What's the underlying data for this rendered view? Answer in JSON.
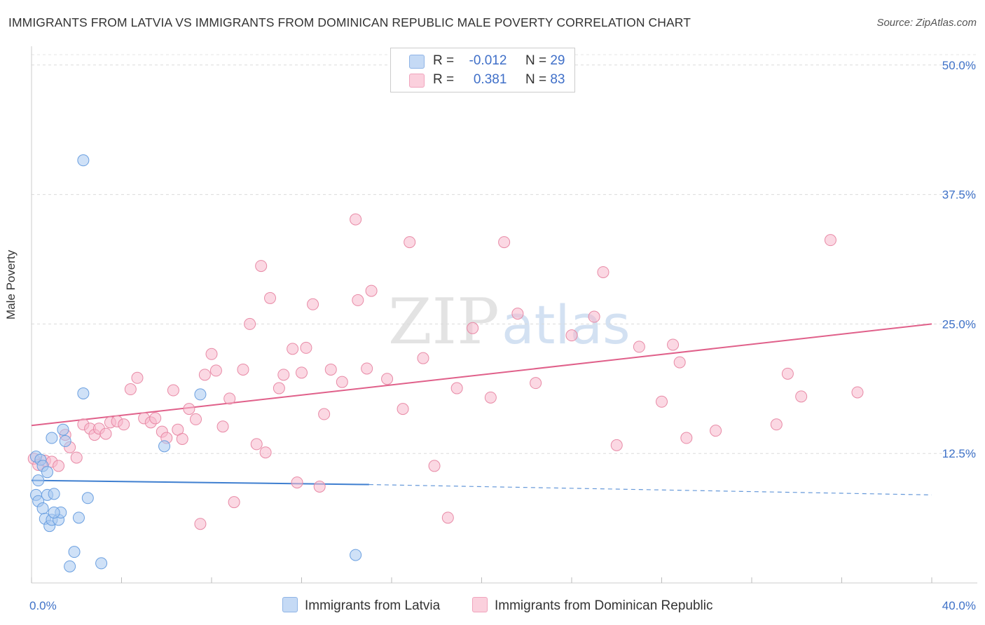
{
  "title": "IMMIGRANTS FROM LATVIA VS IMMIGRANTS FROM DOMINICAN REPUBLIC MALE POVERTY CORRELATION CHART",
  "source": "Source: ZipAtlas.com",
  "watermark": {
    "zip": "ZIP",
    "atlas": "atlas"
  },
  "legend": {
    "rows": [
      {
        "r_label": "R =",
        "r_value": "-0.012",
        "n_label": "N =",
        "n_value": "29",
        "color": "#a8c8f0"
      },
      {
        "r_label": "R =",
        "r_value": " 0.381",
        "n_label": "N =",
        "n_value": "83",
        "color": "#f7b8cc"
      }
    ]
  },
  "bottom_legend": {
    "latvia": "Immigrants from Latvia",
    "dominican": "Immigrants from Dominican Republic"
  },
  "chart_data": {
    "type": "scatter",
    "ylabel": "Male Poverty",
    "xlim": [
      0,
      40
    ],
    "ylim": [
      0,
      51
    ],
    "x_tick_labels": [
      {
        "value": 0,
        "label": "0.0%"
      },
      {
        "value": 40,
        "label": "40.0%"
      }
    ],
    "y_tick_labels": [
      {
        "value": 12.5,
        "label": "12.5%"
      },
      {
        "value": 25,
        "label": "25.0%"
      },
      {
        "value": 37.5,
        "label": "37.5%"
      },
      {
        "value": 50,
        "label": "50.0%"
      }
    ],
    "x_minor_ticks": [
      0,
      4,
      8,
      12,
      16,
      20,
      24,
      28,
      32,
      36,
      40
    ],
    "series": [
      {
        "name": "Immigrants from Latvia",
        "color": "#6a9fe0",
        "fill": "#a8c8f0",
        "trend": {
          "x0": 0,
          "y0": 9.9,
          "x1": 15,
          "y1": 9.5,
          "dash_x1": 40,
          "dash_y1": 8.5,
          "color": "#3f7fd0"
        },
        "points": [
          [
            2.3,
            40.8
          ],
          [
            0.2,
            12.2
          ],
          [
            0.3,
            9.9
          ],
          [
            0.4,
            11.9
          ],
          [
            0.5,
            11.3
          ],
          [
            0.7,
            10.7
          ],
          [
            0.2,
            8.5
          ],
          [
            0.3,
            7.9
          ],
          [
            0.5,
            7.2
          ],
          [
            0.7,
            8.5
          ],
          [
            1.0,
            8.6
          ],
          [
            0.6,
            6.2
          ],
          [
            0.8,
            5.5
          ],
          [
            0.9,
            6.1
          ],
          [
            1.2,
            6.1
          ],
          [
            1.3,
            6.8
          ],
          [
            1.0,
            6.8
          ],
          [
            0.9,
            14.0
          ],
          [
            1.4,
            14.8
          ],
          [
            1.5,
            13.7
          ],
          [
            2.3,
            18.3
          ],
          [
            2.5,
            8.2
          ],
          [
            2.1,
            6.3
          ],
          [
            1.9,
            3.0
          ],
          [
            1.7,
            1.6
          ],
          [
            3.1,
            1.9
          ],
          [
            5.9,
            13.2
          ],
          [
            7.5,
            18.2
          ],
          [
            14.4,
            2.7
          ]
        ]
      },
      {
        "name": "Immigrants from Dominican Republic",
        "color": "#e88aa6",
        "fill": "#f7b8cc",
        "trend": {
          "x0": 0,
          "y0": 15.2,
          "x1": 40,
          "y1": 25.0,
          "color": "#e0608a"
        },
        "points": [
          [
            0.1,
            12.0
          ],
          [
            0.3,
            11.4
          ],
          [
            0.6,
            11.8
          ],
          [
            0.9,
            11.7
          ],
          [
            1.2,
            11.3
          ],
          [
            1.5,
            14.3
          ],
          [
            1.7,
            13.1
          ],
          [
            2.0,
            12.1
          ],
          [
            2.3,
            15.3
          ],
          [
            2.6,
            14.9
          ],
          [
            2.8,
            14.3
          ],
          [
            3.0,
            14.9
          ],
          [
            3.3,
            14.4
          ],
          [
            3.5,
            15.5
          ],
          [
            3.8,
            15.6
          ],
          [
            4.1,
            15.3
          ],
          [
            4.4,
            18.7
          ],
          [
            4.7,
            19.8
          ],
          [
            5.0,
            15.9
          ],
          [
            5.3,
            15.5
          ],
          [
            5.5,
            15.9
          ],
          [
            5.8,
            14.6
          ],
          [
            6.0,
            14.0
          ],
          [
            6.3,
            18.6
          ],
          [
            6.5,
            14.8
          ],
          [
            6.7,
            13.9
          ],
          [
            7.0,
            16.8
          ],
          [
            7.3,
            15.8
          ],
          [
            7.7,
            20.1
          ],
          [
            8.0,
            22.1
          ],
          [
            8.2,
            20.5
          ],
          [
            8.5,
            15.1
          ],
          [
            8.8,
            17.8
          ],
          [
            9.0,
            7.8
          ],
          [
            9.4,
            20.6
          ],
          [
            9.7,
            25.0
          ],
          [
            10.0,
            13.4
          ],
          [
            10.2,
            30.6
          ],
          [
            10.4,
            12.6
          ],
          [
            10.6,
            27.5
          ],
          [
            11.0,
            18.8
          ],
          [
            11.2,
            20.1
          ],
          [
            11.6,
            22.6
          ],
          [
            11.8,
            9.7
          ],
          [
            12.0,
            20.3
          ],
          [
            12.2,
            22.7
          ],
          [
            12.5,
            26.9
          ],
          [
            12.8,
            9.3
          ],
          [
            13.0,
            16.3
          ],
          [
            13.3,
            20.6
          ],
          [
            13.8,
            19.4
          ],
          [
            14.4,
            35.1
          ],
          [
            14.5,
            27.3
          ],
          [
            14.9,
            20.7
          ],
          [
            15.1,
            28.2
          ],
          [
            15.8,
            19.7
          ],
          [
            16.5,
            16.8
          ],
          [
            16.8,
            32.9
          ],
          [
            17.4,
            21.7
          ],
          [
            17.9,
            11.3
          ],
          [
            18.5,
            6.3
          ],
          [
            18.9,
            18.8
          ],
          [
            19.6,
            24.6
          ],
          [
            20.4,
            17.9
          ],
          [
            21.0,
            32.9
          ],
          [
            21.6,
            26.0
          ],
          [
            22.4,
            19.3
          ],
          [
            24.0,
            23.9
          ],
          [
            25.0,
            25.7
          ],
          [
            25.4,
            30.0
          ],
          [
            26.0,
            13.3
          ],
          [
            27.0,
            22.8
          ],
          [
            28.0,
            17.5
          ],
          [
            28.5,
            23.0
          ],
          [
            28.8,
            21.3
          ],
          [
            29.1,
            14.0
          ],
          [
            30.4,
            14.7
          ],
          [
            33.1,
            15.3
          ],
          [
            33.6,
            20.2
          ],
          [
            34.2,
            18.0
          ],
          [
            35.5,
            33.1
          ],
          [
            36.7,
            18.4
          ],
          [
            7.5,
            5.7
          ]
        ]
      }
    ]
  }
}
